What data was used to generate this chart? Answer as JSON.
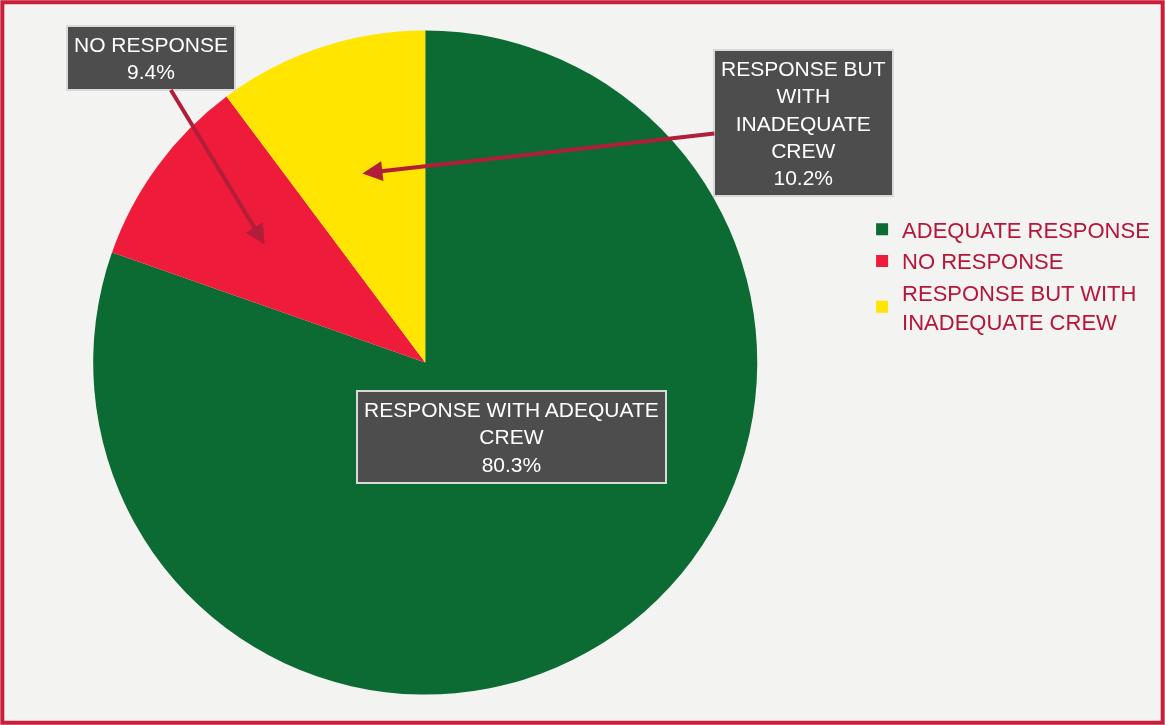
{
  "chart_data": {
    "type": "pie",
    "categories": [
      "ADEQUATE RESPONSE",
      "NO RESPONSE",
      "RESPONSE BUT WITH INADEQUATE CREW"
    ],
    "values": [
      80.3,
      9.4,
      10.2
    ],
    "colors": [
      "#0b6b33",
      "#ee1c3a",
      "#ffe500"
    ],
    "value_labels": [
      "RESPONSE WITH ADEQUATE CREW 80.3%",
      "NO RESPONSE 9.4%",
      "RESPONSE BUT WITH INADEQUATE CREW 10.2%"
    ],
    "legend": "right"
  }
}
